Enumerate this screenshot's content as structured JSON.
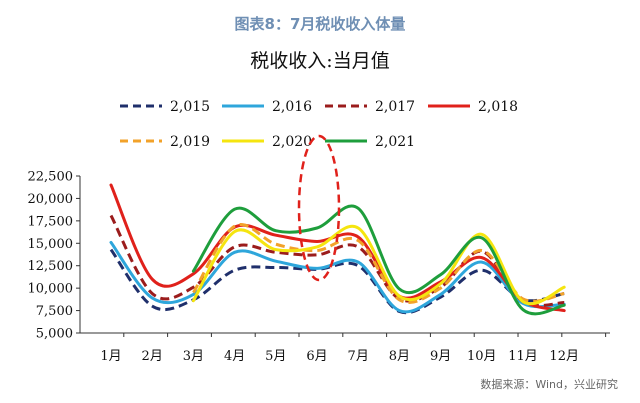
{
  "header": {
    "figure_title": "图表8：7月税收收入体量"
  },
  "source": "数据来源：Wind，兴业研究",
  "chart_data": {
    "type": "line",
    "title": "税收收入:当月值",
    "categories": [
      "1月",
      "2月",
      "3月",
      "4月",
      "5月",
      "6月",
      "7月",
      "8月",
      "9月",
      "10月",
      "11月",
      "12月"
    ],
    "ylim": [
      5000,
      22500
    ],
    "yticks": [
      "5,000",
      "7,500",
      "10,000",
      "12,500",
      "15,000",
      "17,500",
      "20,000",
      "22,500"
    ],
    "ytick_values": [
      5000,
      7500,
      10000,
      12500,
      15000,
      17500,
      20000,
      22500
    ],
    "legend_position": "top",
    "series": [
      {
        "name": "2,015",
        "color": "#1f2f6b",
        "style": "dashed",
        "values": [
          14300,
          8000,
          8700,
          12000,
          12300,
          12100,
          12500,
          7400,
          9000,
          12000,
          8700,
          9400
        ]
      },
      {
        "name": "2,016",
        "color": "#2ea6db",
        "style": "solid",
        "values": [
          15100,
          8900,
          9300,
          14000,
          13000,
          12200,
          12900,
          7500,
          9300,
          12900,
          8300,
          8200
        ]
      },
      {
        "name": "2,017",
        "color": "#9b1c1c",
        "style": "dashed",
        "values": [
          18100,
          9400,
          10100,
          14600,
          14000,
          13700,
          14600,
          8800,
          10100,
          14100,
          8500,
          8400
        ]
      },
      {
        "name": "2,018",
        "color": "#e0211b",
        "style": "solid",
        "values": [
          21500,
          11000,
          11600,
          16800,
          15900,
          15200,
          15700,
          9100,
          10700,
          13400,
          8600,
          7500
        ]
      },
      {
        "name": "2,019",
        "color": "#f2a22a",
        "style": "dashed",
        "values": [
          null,
          null,
          9500,
          16900,
          14900,
          14200,
          15300,
          8700,
          10000,
          14200,
          8800,
          9400
        ]
      },
      {
        "name": "2,020",
        "color": "#f5e50f",
        "style": "solid",
        "values": [
          null,
          null,
          8600,
          16300,
          14300,
          14600,
          16700,
          9100,
          10500,
          16000,
          8500,
          10100
        ]
      },
      {
        "name": "2,021",
        "color": "#1e9e3c",
        "style": "solid",
        "values": [
          null,
          null,
          11900,
          18800,
          16400,
          16700,
          18900,
          9900,
          11500,
          15600,
          7600,
          8100
        ]
      }
    ],
    "annotation": {
      "type": "dashed-ellipse",
      "color": "#e0211b",
      "category": "6月"
    }
  }
}
